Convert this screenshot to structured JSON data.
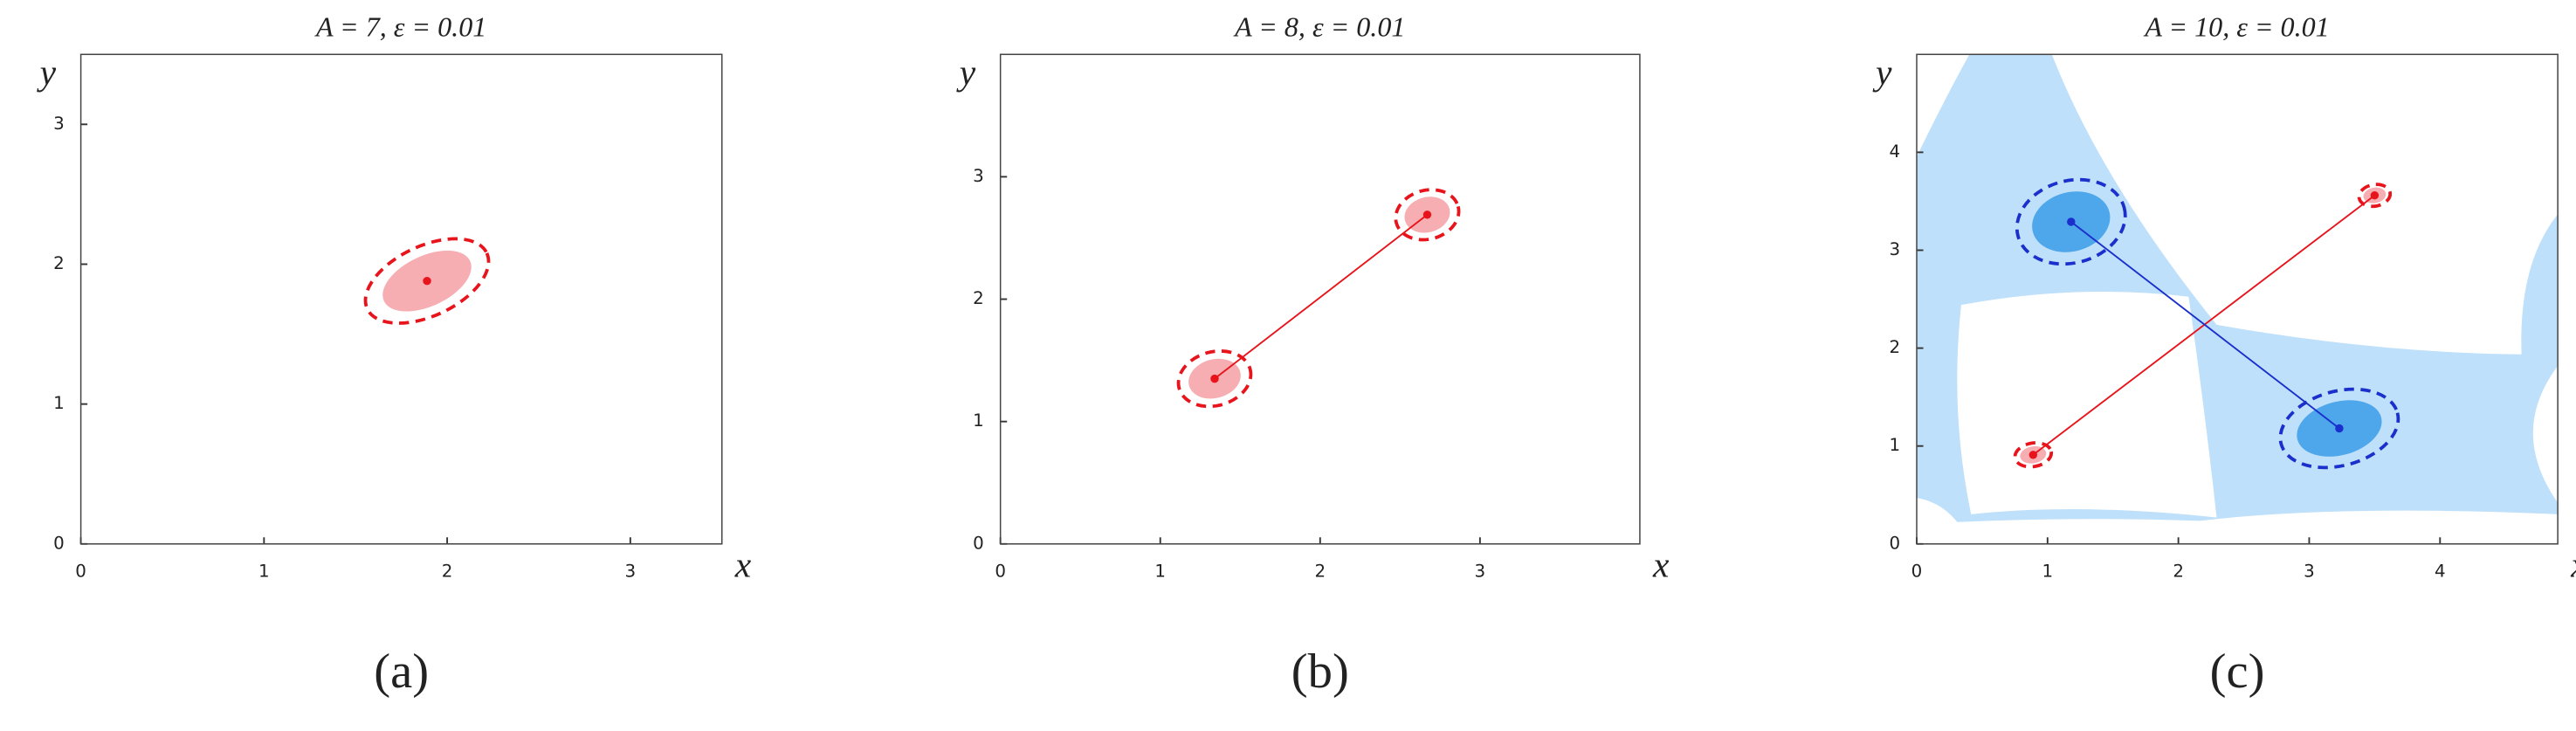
{
  "chart_data": [
    {
      "type": "scatter",
      "title": "A = 7, ε = 0.01",
      "caption": "(a)",
      "xlabel": "x",
      "ylabel": "y",
      "xlim": [
        0,
        3.5
      ],
      "ylim": [
        0,
        3.5
      ],
      "xticks": [
        0,
        1,
        2,
        3
      ],
      "yticks": [
        0,
        1,
        2,
        3
      ],
      "series": [
        {
          "color": "#e8141c",
          "cloud_color": "#f4a0a4",
          "x": [
            1.89
          ],
          "y": [
            1.88
          ],
          "ellipse_rx": [
            0.36
          ],
          "ellipse_ry": [
            0.25
          ],
          "ellipse_angle": [
            -25
          ]
        }
      ]
    },
    {
      "type": "scatter",
      "title": "A = 8, ε = 0.01",
      "caption": "(b)",
      "xlabel": "x",
      "ylabel": "y",
      "xlim": [
        0,
        4
      ],
      "ylim": [
        0,
        4
      ],
      "xticks": [
        0,
        1,
        2,
        3
      ],
      "yticks": [
        0,
        1,
        2,
        3
      ],
      "series": [
        {
          "color": "#e8141c",
          "cloud_color": "#f4a0a4",
          "x": [
            1.34,
            2.67
          ],
          "y": [
            1.35,
            2.69
          ],
          "ellipse_rx": [
            0.23,
            0.2
          ],
          "ellipse_ry": [
            0.22,
            0.2
          ],
          "ellipse_angle": [
            -15,
            -15
          ]
        }
      ]
    },
    {
      "type": "scatter",
      "title": "A = 10, ε = 0.01",
      "caption": "(c)",
      "xlabel": "x",
      "ylabel": "y",
      "xlim": [
        0,
        4.9
      ],
      "ylim": [
        0,
        5
      ],
      "xticks": [
        0,
        1,
        2,
        3,
        4
      ],
      "yticks": [
        0,
        1,
        2,
        3,
        4
      ],
      "series": [
        {
          "color": "#e8141c",
          "cloud_color": "#f4a0a4",
          "x": [
            0.89,
            3.5
          ],
          "y": [
            0.91,
            3.56
          ],
          "ellipse_rx": [
            0.14,
            0.12
          ],
          "ellipse_ry": [
            0.12,
            0.11
          ],
          "ellipse_angle": [
            -10,
            -10
          ]
        },
        {
          "color": "#1a2fcc",
          "cloud_color": "#3a9be8",
          "x": [
            1.18,
            3.23
          ],
          "y": [
            3.29,
            1.18
          ],
          "ellipse_rx": [
            0.42,
            0.46
          ],
          "ellipse_ry": [
            0.42,
            0.38
          ],
          "ellipse_angle": [
            -15,
            -15
          ]
        }
      ]
    }
  ]
}
